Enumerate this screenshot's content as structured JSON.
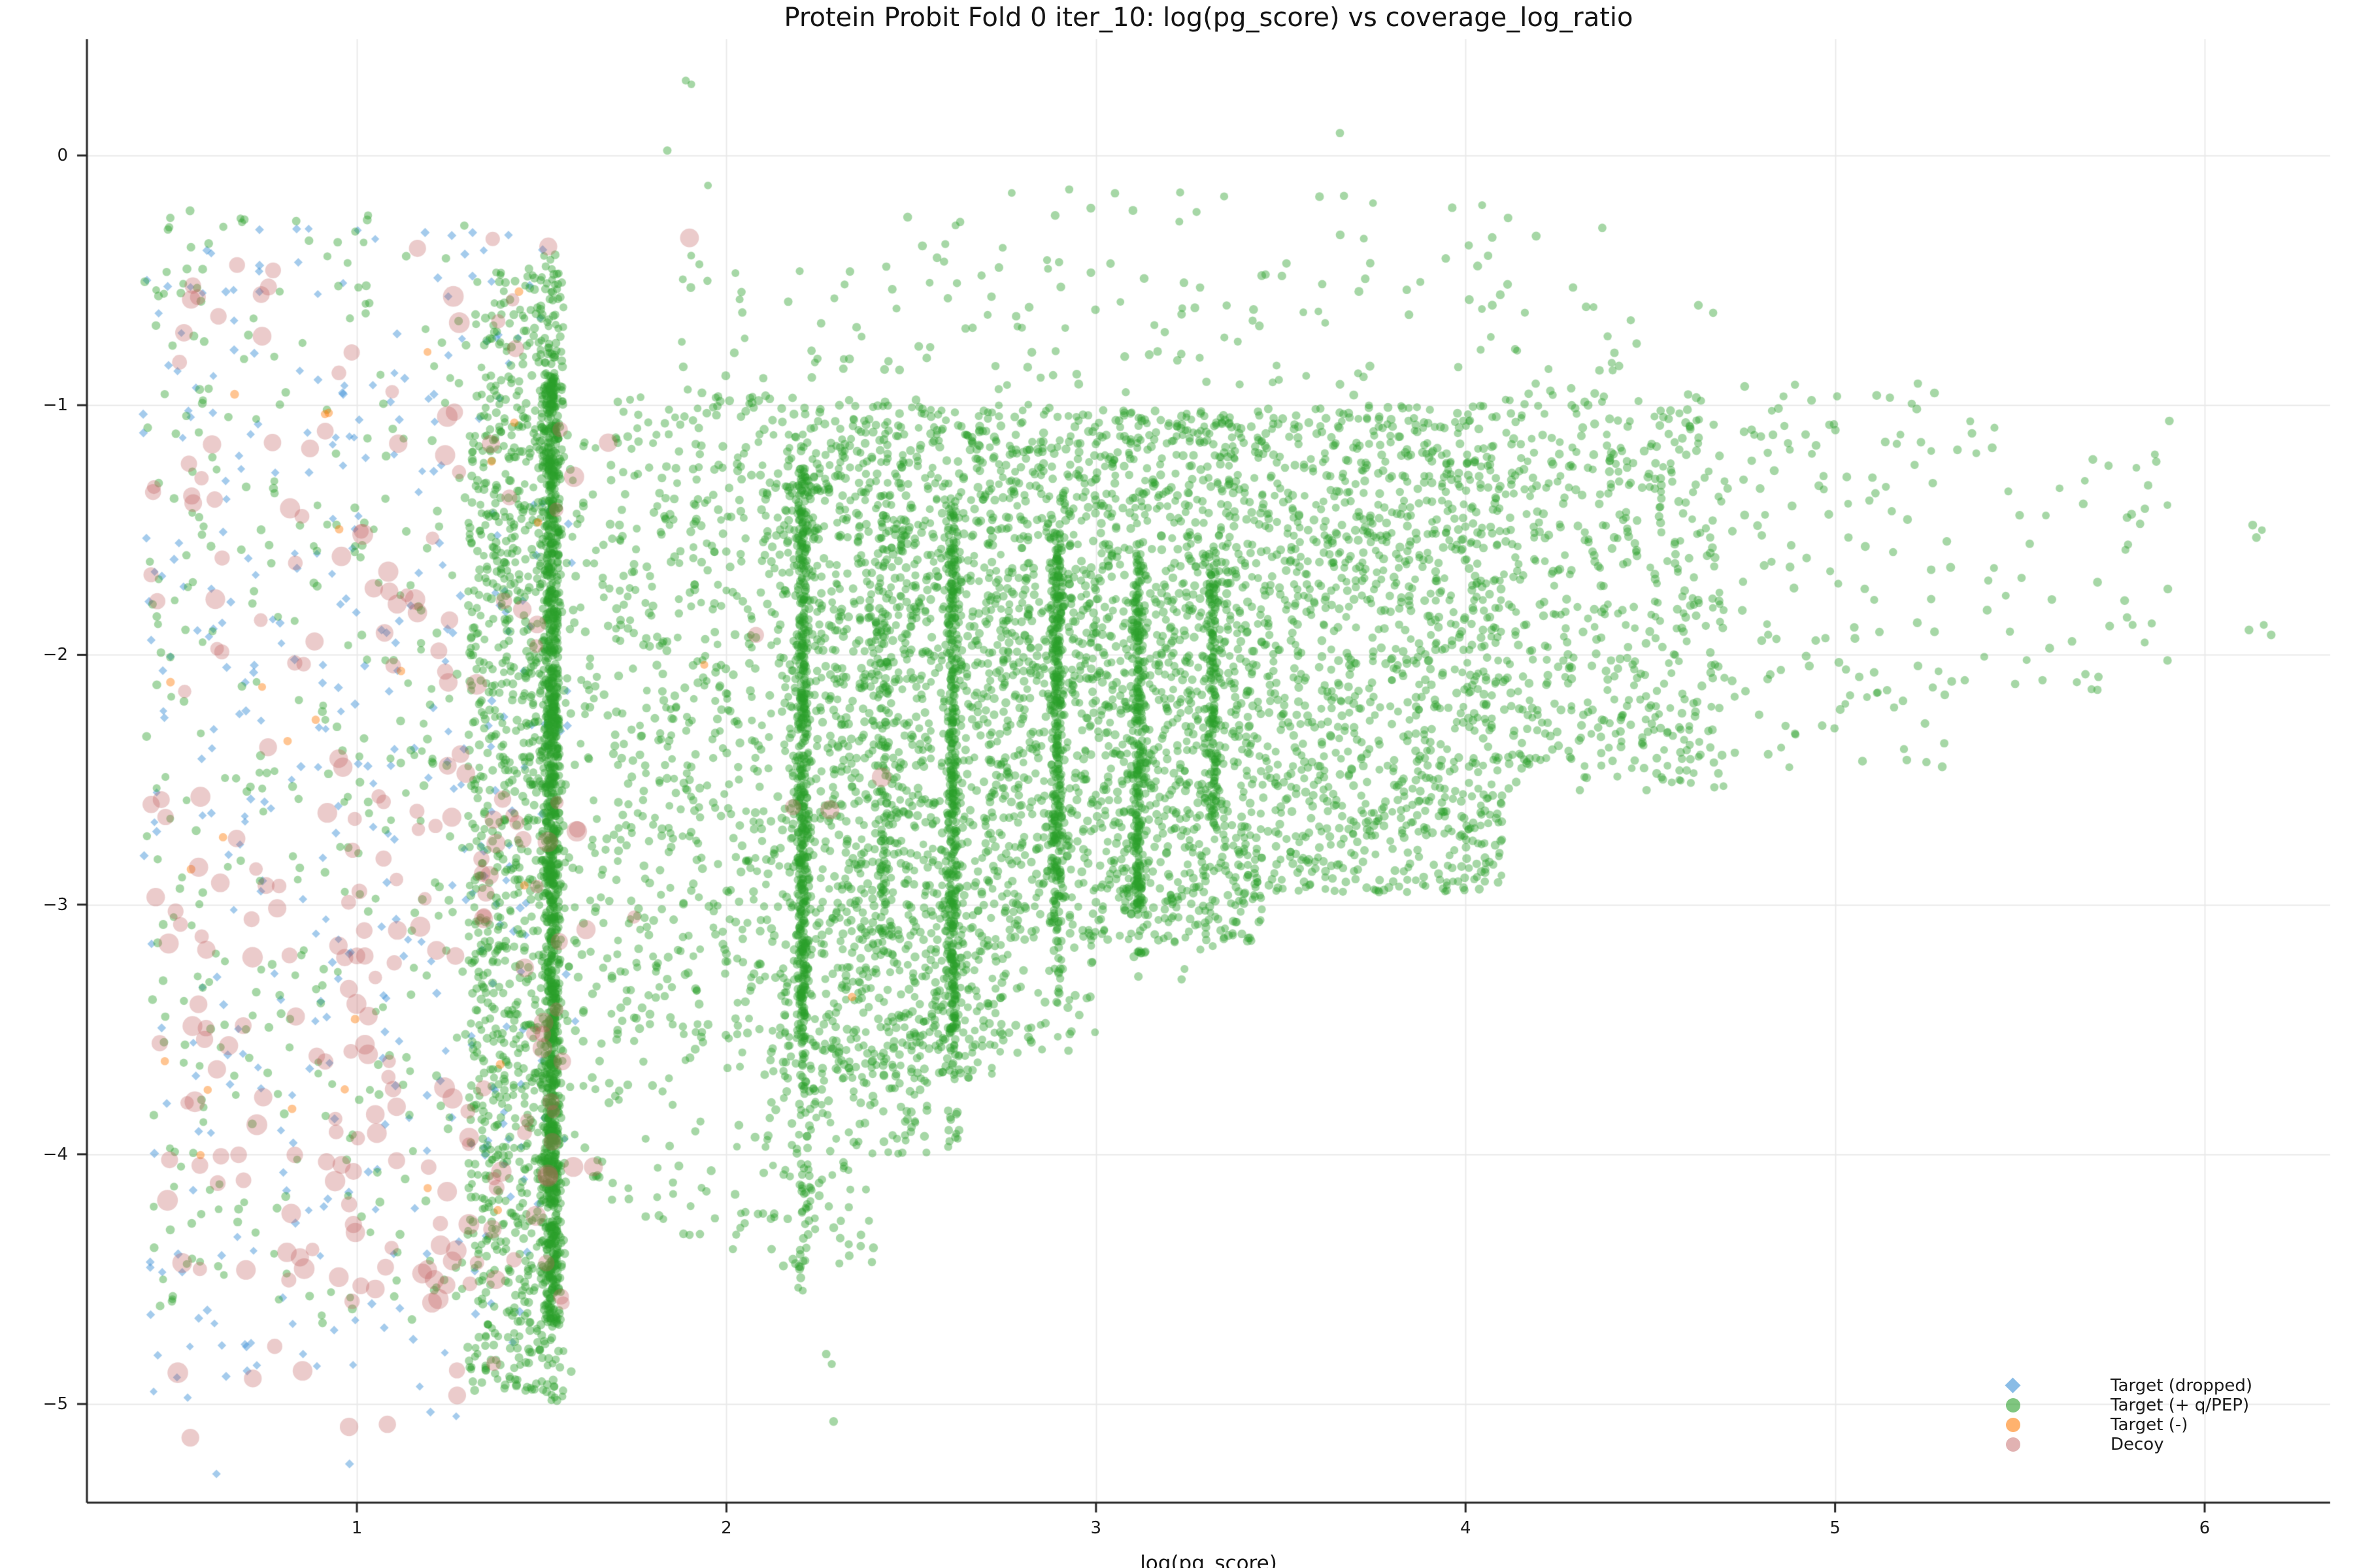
{
  "title": "Protein Probit Fold 0 iter_10: log(pg_score) vs coverage_log_ratio",
  "axes": {
    "xlabel": "log(pg_score)",
    "x_tick_values": [
      1,
      2,
      3,
      4,
      5,
      6
    ],
    "x_tick_labels": [
      "1",
      "2",
      "3",
      "4",
      "5",
      "6"
    ],
    "y_tick_values": [
      0,
      -1,
      -2,
      -3,
      -4,
      -5
    ],
    "y_tick_labels": [
      "0",
      "−1",
      "−2",
      "−3",
      "−4",
      "−5"
    ],
    "x_range": [
      0.2695,
      6.3395
    ],
    "y_range": [
      -5.3951,
      0.4657
    ],
    "grid": true,
    "grid_color": "#e9e9e9",
    "spine_color": "#262626",
    "background": "#ffffff"
  },
  "legend": {
    "position": "lower right",
    "items": [
      {
        "label": "Target (dropped)",
        "marker": "diamond",
        "color": "#4a98d9",
        "alpha": 0.5
      },
      {
        "label": "Target (+ q/PEP)",
        "marker": "circle",
        "color": "#2ca02c",
        "alpha": 0.45
      },
      {
        "label": "Target (-)",
        "marker": "circle",
        "color": "#ff7f0e",
        "alpha": 0.45
      },
      {
        "label": "Decoy",
        "marker": "circle",
        "color": "#c05c5c",
        "alpha": 0.32
      }
    ]
  },
  "chart_data": {
    "type": "scatter",
    "title": "Protein Probit Fold 0 iter_10: log(pg_score) vs coverage_log_ratio",
    "xlabel": "log(pg_score)",
    "ylabel": "coverage_log_ratio",
    "xlim": [
      0.2695,
      6.3395
    ],
    "ylim": [
      -5.3951,
      0.4657
    ],
    "seed": 42,
    "series": [
      {
        "name": "Target (dropped)",
        "marker": "diamond",
        "color": "#4a98d9",
        "alpha": 0.5,
        "size": 6.6,
        "size_jitter": 0.6,
        "clusters": [
          {
            "n": 360,
            "x": [
              0.42,
              1.52
            ],
            "y": [
              -5.05,
              -0.28
            ]
          },
          {
            "n": 30,
            "x": [
              1.3,
              1.6
            ],
            "y": [
              -4.6,
              -1.3
            ]
          }
        ],
        "points": [
          [
            0.62,
            -5.28
          ],
          [
            0.98,
            -5.24
          ],
          [
            1.17,
            -4.93
          ],
          [
            0.45,
            -4.95
          ]
        ]
      },
      {
        "name": "Target (+ q/PEP)",
        "marker": "circle",
        "color": "#2ca02c",
        "alpha": 0.42,
        "size": 6.4,
        "size_jitter": 0.5,
        "clusters": [
          {
            "n": 380,
            "x": [
              0.42,
              1.3
            ],
            "y": [
              -4.7,
              -0.2
            ]
          },
          {
            "n": 850,
            "x": [
              1.3,
              1.505
            ],
            "y": [
              -4.55,
              -1.0
            ]
          },
          {
            "n": 120,
            "x": [
              1.32,
              1.56
            ],
            "y": [
              -1.0,
              -0.45
            ]
          },
          {
            "n": 90,
            "x": [
              1.3,
              1.505
            ],
            "y": [
              -4.95,
              -4.55
            ]
          },
          {
            "n": 1550,
            "x": {
              "m": 1.528,
              "s": 0.012
            },
            "y": [
              -4.68,
              -0.88
            ]
          },
          {
            "n": 25,
            "x": {
              "m": 1.528,
              "s": 0.012
            },
            "y": [
              -5.0,
              -4.68
            ]
          },
          {
            "n": 30,
            "x": {
              "m": 1.525,
              "s": 0.015
            },
            "y": [
              -0.88,
              -0.35
            ]
          },
          {
            "n": 130,
            "x": [
              1.56,
              1.72
            ],
            "y": [
              -4.2,
              -1.1
            ]
          },
          {
            "n": 45,
            "x": [
              1.72,
              2.12
            ],
            "y": [
              -4.4,
              -3.6
            ]
          },
          {
            "n": 550,
            "x": [
              1.7,
              2.15
            ],
            "y": [
              -3.6,
              -0.95
            ]
          },
          {
            "n": 1700,
            "x": [
              2.15,
              2.75
            ],
            "y": [
              -3.7,
              -1.0
            ]
          },
          {
            "n": 1700,
            "x": [
              2.75,
              3.45
            ],
            "y": [
              -3.15,
              -1.02
            ]
          },
          {
            "n": 1150,
            "x": [
              3.45,
              4.1
            ],
            "y": [
              -2.95,
              -1.0
            ]
          },
          {
            "n": 520,
            "x": [
              4.1,
              4.7
            ],
            "y": [
              -2.55,
              -0.95
            ]
          },
          {
            "n": 110,
            "x": [
              2.1,
              2.55
            ],
            "y": [
              -4.0,
              -3.55
            ]
          },
          {
            "n": 40,
            "x": [
              2.12,
              2.42
            ],
            "y": [
              -4.45,
              -4.0
            ]
          },
          {
            "n": 50,
            "x": [
              2.6,
              3.0
            ],
            "y": [
              -3.6,
              -3.15
            ]
          },
          {
            "n": 12,
            "x": [
              3.1,
              3.35
            ],
            "y": [
              -3.3,
              -3.0
            ]
          },
          {
            "n": 170,
            "x": [
              1.85,
              4.5
            ],
            "y": [
              -1.05,
              -0.4
            ]
          },
          {
            "n": 25,
            "x": [
              2.3,
              4.2
            ],
            "y": [
              -0.4,
              -0.12
            ]
          },
          {
            "n": 470,
            "x": {
              "m": 2.205,
              "s": 0.008
            },
            "y": [
              -3.55,
              -1.25
            ]
          },
          {
            "n": 55,
            "x": {
              "m": 2.21,
              "s": 0.01
            },
            "y": [
              -4.55,
              -3.55
            ]
          },
          {
            "n": 110,
            "x": {
              "m": 2.425,
              "s": 0.01
            },
            "y": [
              -3.25,
              -1.35
            ]
          },
          {
            "n": 380,
            "x": {
              "m": 2.612,
              "s": 0.008
            },
            "y": [
              -3.5,
              -1.4
            ]
          },
          {
            "n": 25,
            "x": {
              "m": 2.612,
              "s": 0.009
            },
            "y": [
              -3.95,
              -3.5
            ]
          },
          {
            "n": 300,
            "x": {
              "m": 2.895,
              "s": 0.008
            },
            "y": [
              -3.1,
              -1.5
            ]
          },
          {
            "n": 18,
            "x": {
              "m": 2.895,
              "s": 0.009
            },
            "y": [
              -3.4,
              -3.1
            ]
          },
          {
            "n": 240,
            "x": {
              "m": 3.115,
              "s": 0.008
            },
            "y": [
              -3.0,
              -1.55
            ]
          },
          {
            "n": 12,
            "x": {
              "m": 3.115,
              "s": 0.009
            },
            "y": [
              -3.3,
              -3.0
            ]
          },
          {
            "n": 150,
            "x": {
              "m": 3.318,
              "s": 0.009
            },
            "y": [
              -2.7,
              -1.6
            ]
          },
          {
            "n": 130,
            "x": [
              4.7,
              5.3
            ],
            "y": [
              -2.45,
              -0.9
            ]
          },
          {
            "n": 55,
            "x": [
              5.3,
              5.92
            ],
            "y": [
              -2.15,
              -1.05
            ]
          }
        ],
        "points": [
          [
            1.89,
            0.3
          ],
          [
            1.905,
            0.285
          ],
          [
            1.84,
            0.02
          ],
          [
            1.95,
            -0.12
          ],
          [
            3.66,
            0.09
          ],
          [
            4.37,
            -0.29
          ],
          [
            2.62,
            -0.28
          ],
          [
            3.1,
            -0.22
          ],
          [
            6.13,
            -1.48
          ],
          [
            6.155,
            -1.5
          ],
          [
            6.14,
            -1.53
          ],
          [
            6.12,
            -1.9
          ],
          [
            6.16,
            -1.88
          ],
          [
            6.18,
            -1.92
          ],
          [
            5.79,
            -1.45
          ],
          [
            5.79,
            -1.85
          ],
          [
            5.805,
            -1.88
          ],
          [
            2.27,
            -4.8
          ],
          [
            2.285,
            -4.84
          ],
          [
            2.29,
            -5.07
          ],
          [
            2.18,
            -4.42
          ],
          [
            2.24,
            -4.3
          ],
          [
            1.58,
            -4.87
          ],
          [
            2.6,
            -3.97
          ],
          [
            4.63,
            -0.6
          ],
          [
            4.67,
            -0.63
          ]
        ]
      },
      {
        "name": "Target (-)",
        "marker": "circle",
        "color": "#ff7f0e",
        "alpha": 0.45,
        "size": 6.4,
        "size_jitter": 0.4,
        "clusters": [
          {
            "n": 26,
            "x": [
              0.45,
              1.54
            ],
            "y": [
              -4.5,
              -0.42
            ]
          }
        ],
        "points": [
          [
            1.94,
            -2.04
          ],
          [
            2.34,
            -3.37
          ]
        ]
      },
      {
        "name": "Decoy",
        "marker": "circle",
        "color": "#c05c5c",
        "alpha": 0.32,
        "size": 13,
        "size_jitter": 3,
        "clusters": [
          {
            "n": 170,
            "x": [
              0.44,
              1.6
            ],
            "y": [
              -4.6,
              -2.55
            ]
          },
          {
            "n": 85,
            "x": [
              0.44,
              1.6
            ],
            "y": [
              -2.55,
              -0.3
            ]
          },
          {
            "n": 10,
            "x": [
              0.5,
              1.4
            ],
            "y": [
              -5.15,
              -4.6
            ]
          }
        ],
        "points": [
          [
            1.75,
            -3.05
          ],
          [
            2.08,
            -1.92
          ],
          [
            2.18,
            -2.61
          ],
          [
            2.28,
            -2.62
          ],
          [
            1.9,
            -0.33
          ],
          [
            2.42,
            -2.49
          ],
          [
            1.68,
            -1.15
          ],
          [
            1.62,
            -3.1
          ],
          [
            1.64,
            -4.05
          ]
        ]
      }
    ]
  }
}
